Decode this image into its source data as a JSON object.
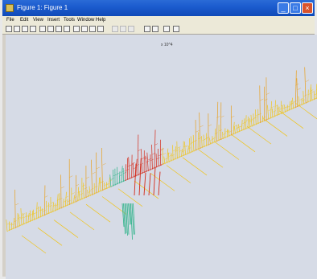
{
  "window": {
    "title": "Figure 1: Figure 1",
    "minimize_label": "_",
    "maximize_label": "□",
    "close_label": "×"
  },
  "menubar": {
    "items": [
      "File",
      "Edit",
      "View",
      "Insert",
      "Tools",
      "Window",
      "Help"
    ]
  },
  "toolbar": {
    "icons": [
      "new-file-icon",
      "open-icon",
      "save-icon",
      "print-icon",
      "arrow-icon",
      "text-icon",
      "rect-icon",
      "line-icon",
      "zoom-in-icon",
      "zoom-out-icon",
      "rotate-icon",
      "pan-icon",
      "datatip-icon",
      "brush-icon",
      "link-icon",
      "colorbar-icon",
      "legend-icon",
      "grid-icon",
      "camera-icon"
    ]
  },
  "plot": {
    "caption": "x  10^4",
    "colors": {
      "background": "#d6dbe6",
      "peak_low": "#f0c419",
      "peak_mid": "#e8a020",
      "peak_high": "#d42a1a",
      "trough": "#2fb38a"
    }
  }
}
